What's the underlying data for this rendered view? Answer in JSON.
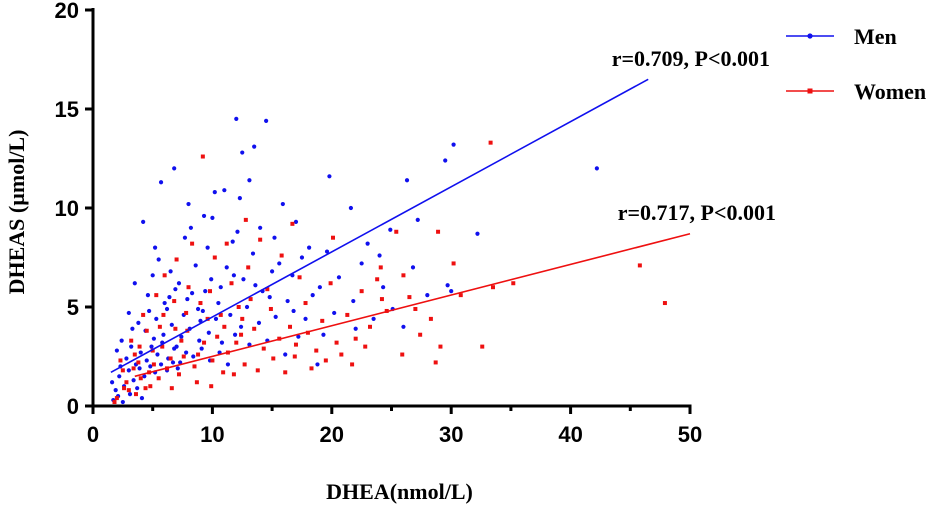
{
  "chart_data": {
    "type": "scatter",
    "xlabel": "DHEA(nmol/L)",
    "ylabel": "DHEAS (µmol/L)",
    "xlim": [
      0,
      50
    ],
    "ylim": [
      0,
      20
    ],
    "x_ticks": [
      "0",
      "10",
      "20",
      "30",
      "40",
      "50"
    ],
    "y_ticks": [
      "0",
      "5",
      "10",
      "15",
      "20"
    ],
    "series": [
      {
        "name": "Men",
        "color": "#1010ee",
        "marker": "circle",
        "regression": {
          "x": [
            1.5,
            46.5
          ],
          "y": [
            1.7,
            16.5
          ]
        },
        "annotation": "r=0.709, P<0.001",
        "points": [
          [
            42.2,
            12.0
          ],
          [
            30.2,
            13.2
          ],
          [
            29.5,
            12.4
          ],
          [
            26.3,
            11.4
          ],
          [
            19.8,
            11.6
          ],
          [
            14.5,
            14.4
          ],
          [
            12.0,
            14.5
          ],
          [
            12.5,
            12.8
          ],
          [
            13.5,
            13.1
          ],
          [
            6.8,
            12.0
          ],
          [
            5.7,
            11.3
          ],
          [
            11.0,
            10.9
          ],
          [
            15.9,
            10.2
          ],
          [
            10.2,
            10.8
          ],
          [
            12.3,
            10.5
          ],
          [
            21.6,
            10.0
          ],
          [
            24.9,
            8.9
          ],
          [
            27.2,
            9.4
          ],
          [
            32.2,
            8.7
          ],
          [
            29.7,
            6.1
          ],
          [
            4.2,
            9.3
          ],
          [
            8.2,
            9.0
          ],
          [
            10.0,
            9.5
          ],
          [
            14.0,
            9.0
          ],
          [
            18.1,
            8.0
          ],
          [
            17.0,
            9.3
          ],
          [
            22.5,
            7.2
          ],
          [
            24.3,
            6.0
          ],
          [
            20.6,
            6.5
          ],
          [
            5.2,
            8.0
          ],
          [
            7.7,
            8.5
          ],
          [
            9.6,
            8.0
          ],
          [
            11.7,
            8.3
          ],
          [
            13.4,
            7.7
          ],
          [
            15.6,
            7.2
          ],
          [
            16.7,
            6.6
          ],
          [
            19.0,
            6.0
          ],
          [
            21.8,
            5.3
          ],
          [
            23.5,
            4.4
          ],
          [
            26.0,
            4.0
          ],
          [
            28.0,
            5.6
          ],
          [
            30.0,
            5.8
          ],
          [
            5.5,
            7.4
          ],
          [
            6.5,
            6.8
          ],
          [
            7.2,
            6.2
          ],
          [
            8.6,
            7.1
          ],
          [
            9.9,
            6.4
          ],
          [
            11.2,
            7.0
          ],
          [
            12.6,
            6.4
          ],
          [
            14.2,
            5.8
          ],
          [
            15.0,
            6.8
          ],
          [
            16.3,
            5.3
          ],
          [
            17.8,
            4.4
          ],
          [
            19.3,
            3.6
          ],
          [
            3.5,
            6.2
          ],
          [
            4.6,
            5.6
          ],
          [
            5.0,
            6.6
          ],
          [
            6.0,
            5.2
          ],
          [
            6.9,
            5.9
          ],
          [
            7.9,
            5.4
          ],
          [
            8.8,
            4.9
          ],
          [
            9.4,
            5.8
          ],
          [
            10.5,
            5.2
          ],
          [
            11.5,
            4.6
          ],
          [
            12.9,
            5.0
          ],
          [
            13.9,
            4.2
          ],
          [
            15.3,
            4.5
          ],
          [
            17.2,
            3.5
          ],
          [
            18.8,
            2.1
          ],
          [
            3.0,
            4.7
          ],
          [
            3.8,
            4.2
          ],
          [
            4.4,
            3.8
          ],
          [
            5.3,
            4.4
          ],
          [
            5.9,
            3.6
          ],
          [
            6.6,
            4.1
          ],
          [
            7.4,
            3.5
          ],
          [
            8.1,
            3.9
          ],
          [
            8.9,
            3.3
          ],
          [
            9.7,
            3.7
          ],
          [
            10.8,
            3.2
          ],
          [
            11.9,
            3.6
          ],
          [
            13.1,
            3.1
          ],
          [
            14.6,
            3.3
          ],
          [
            16.1,
            2.6
          ],
          [
            2.0,
            2.8
          ],
          [
            2.4,
            3.3
          ],
          [
            2.8,
            2.4
          ],
          [
            3.2,
            3.0
          ],
          [
            3.6,
            2.1
          ],
          [
            4.0,
            2.7
          ],
          [
            4.5,
            2.3
          ],
          [
            4.9,
            3.0
          ],
          [
            5.4,
            2.6
          ],
          [
            5.8,
            3.2
          ],
          [
            6.3,
            2.4
          ],
          [
            6.8,
            2.9
          ],
          [
            7.3,
            2.2
          ],
          [
            7.8,
            2.7
          ],
          [
            8.4,
            2.5
          ],
          [
            9.1,
            2.9
          ],
          [
            9.8,
            2.3
          ],
          [
            10.6,
            2.7
          ],
          [
            11.3,
            2.1
          ],
          [
            1.6,
            1.2
          ],
          [
            1.9,
            0.8
          ],
          [
            2.2,
            1.5
          ],
          [
            2.6,
            1.0
          ],
          [
            3.0,
            1.8
          ],
          [
            3.4,
            1.3
          ],
          [
            3.9,
            1.9
          ],
          [
            4.3,
            1.5
          ],
          [
            4.8,
            2.0
          ],
          [
            5.2,
            1.7
          ],
          [
            5.7,
            2.1
          ],
          [
            6.2,
            1.8
          ],
          [
            6.7,
            2.2
          ],
          [
            7.1,
            1.9
          ],
          [
            1.7,
            0.3
          ],
          [
            2.1,
            0.5
          ],
          [
            2.5,
            0.2
          ],
          [
            3.1,
            0.6
          ],
          [
            3.7,
            0.9
          ],
          [
            4.1,
            0.4
          ],
          [
            12.4,
            4.0
          ],
          [
            10.3,
            4.4
          ],
          [
            9.2,
            4.8
          ],
          [
            7.6,
            4.6
          ],
          [
            6.2,
            4.9
          ],
          [
            14.8,
            5.5
          ],
          [
            16.8,
            4.8
          ],
          [
            18.4,
            5.6
          ],
          [
            20.2,
            4.7
          ],
          [
            22.0,
            3.9
          ],
          [
            25.1,
            4.9
          ],
          [
            12.1,
            8.8
          ],
          [
            8.0,
            10.2
          ],
          [
            9.3,
            9.6
          ],
          [
            13.1,
            11.4
          ],
          [
            15.2,
            8.5
          ],
          [
            11.8,
            6.6
          ],
          [
            10.7,
            6.0
          ],
          [
            8.3,
            5.7
          ],
          [
            6.4,
            5.5
          ],
          [
            4.7,
            4.8
          ],
          [
            3.3,
            3.9
          ],
          [
            2.3,
            2.0
          ],
          [
            5.1,
            3.4
          ],
          [
            7.0,
            3.0
          ],
          [
            9.0,
            4.3
          ],
          [
            13.6,
            6.1
          ],
          [
            17.5,
            7.5
          ],
          [
            19.6,
            7.8
          ],
          [
            24.0,
            7.6
          ],
          [
            23.0,
            8.2
          ],
          [
            26.8,
            7.0
          ]
        ]
      },
      {
        "name": "Women",
        "color": "#ee1010",
        "marker": "square",
        "regression": {
          "x": [
            3.5,
            50.0
          ],
          "y": [
            1.5,
            8.7
          ]
        },
        "annotation": "r=0.717, P<0.001",
        "points": [
          [
            33.3,
            13.3
          ],
          [
            9.2,
            12.6
          ],
          [
            45.8,
            7.1
          ],
          [
            47.9,
            5.2
          ],
          [
            35.2,
            6.2
          ],
          [
            33.5,
            6.0
          ],
          [
            30.2,
            7.2
          ],
          [
            32.6,
            3.0
          ],
          [
            28.7,
            2.2
          ],
          [
            26.5,
            5.5
          ],
          [
            25.4,
            8.8
          ],
          [
            24.1,
            7.0
          ],
          [
            22.5,
            5.8
          ],
          [
            21.3,
            4.6
          ],
          [
            20.4,
            3.2
          ],
          [
            23.2,
            4.0
          ],
          [
            18.7,
            2.8
          ],
          [
            17.3,
            6.5
          ],
          [
            16.5,
            4.0
          ],
          [
            15.1,
            2.4
          ],
          [
            14.0,
            8.4
          ],
          [
            13.2,
            5.4
          ],
          [
            12.4,
            3.6
          ],
          [
            11.6,
            6.2
          ],
          [
            10.9,
            1.7
          ],
          [
            10.2,
            7.5
          ],
          [
            9.6,
            4.4
          ],
          [
            8.8,
            2.6
          ],
          [
            8.0,
            6.0
          ],
          [
            7.4,
            3.3
          ],
          [
            6.8,
            5.3
          ],
          [
            6.2,
            1.9
          ],
          [
            5.6,
            4.0
          ],
          [
            5.0,
            2.8
          ],
          [
            4.5,
            3.8
          ],
          [
            4.0,
            1.4
          ],
          [
            3.5,
            2.6
          ],
          [
            3.0,
            0.8
          ],
          [
            2.5,
            1.8
          ],
          [
            2.0,
            0.4
          ],
          [
            1.8,
            0.2
          ],
          [
            2.8,
            1.2
          ],
          [
            3.8,
            2.2
          ],
          [
            4.8,
            1.0
          ],
          [
            5.8,
            3.0
          ],
          [
            6.5,
            2.4
          ],
          [
            7.2,
            1.6
          ],
          [
            7.9,
            3.8
          ],
          [
            8.5,
            2.0
          ],
          [
            9.3,
            3.2
          ],
          [
            10.0,
            2.3
          ],
          [
            10.7,
            4.6
          ],
          [
            11.3,
            2.7
          ],
          [
            12.0,
            3.2
          ],
          [
            12.7,
            2.1
          ],
          [
            13.5,
            3.9
          ],
          [
            14.3,
            2.9
          ],
          [
            15.6,
            3.4
          ],
          [
            16.9,
            2.5
          ],
          [
            18.0,
            3.7
          ],
          [
            19.2,
            4.3
          ],
          [
            20.8,
            2.6
          ],
          [
            22.0,
            3.4
          ],
          [
            24.6,
            4.8
          ],
          [
            27.4,
            3.6
          ],
          [
            28.3,
            4.4
          ],
          [
            6.0,
            6.6
          ],
          [
            7.0,
            7.4
          ],
          [
            8.3,
            8.2
          ],
          [
            9.8,
            5.8
          ],
          [
            11.0,
            4.0
          ],
          [
            12.2,
            5.0
          ],
          [
            13.0,
            7.0
          ],
          [
            14.6,
            5.9
          ],
          [
            15.8,
            7.6
          ],
          [
            17.8,
            5.2
          ],
          [
            19.9,
            6.2
          ],
          [
            4.2,
            4.6
          ],
          [
            5.3,
            5.6
          ],
          [
            3.2,
            3.3
          ],
          [
            2.3,
            2.3
          ],
          [
            3.6,
            0.6
          ],
          [
            4.4,
            0.9
          ],
          [
            5.5,
            1.4
          ],
          [
            6.6,
            0.9
          ],
          [
            7.6,
            2.5
          ],
          [
            8.7,
            1.2
          ],
          [
            9.9,
            1.0
          ],
          [
            11.8,
            1.6
          ],
          [
            13.8,
            1.8
          ],
          [
            16.1,
            1.7
          ],
          [
            18.3,
            1.9
          ],
          [
            21.7,
            2.1
          ],
          [
            25.9,
            2.6
          ],
          [
            29.1,
            3.0
          ],
          [
            23.8,
            6.4
          ],
          [
            26.0,
            6.6
          ],
          [
            30.8,
            5.6
          ],
          [
            20.1,
            8.5
          ],
          [
            16.7,
            9.2
          ],
          [
            12.8,
            9.4
          ],
          [
            11.2,
            8.2
          ],
          [
            6.9,
            3.9
          ],
          [
            5.1,
            2.1
          ],
          [
            4.7,
            1.7
          ],
          [
            3.4,
            1.9
          ],
          [
            2.6,
            0.9
          ],
          [
            3.9,
            3.0
          ],
          [
            5.9,
            4.6
          ],
          [
            7.8,
            4.7
          ],
          [
            9.0,
            5.2
          ],
          [
            10.4,
            3.5
          ],
          [
            12.5,
            4.4
          ],
          [
            14.9,
            4.9
          ],
          [
            17.0,
            3.1
          ],
          [
            19.5,
            2.3
          ],
          [
            22.8,
            3.0
          ],
          [
            24.2,
            5.4
          ],
          [
            27.0,
            4.9
          ],
          [
            28.9,
            8.8
          ]
        ]
      }
    ]
  }
}
